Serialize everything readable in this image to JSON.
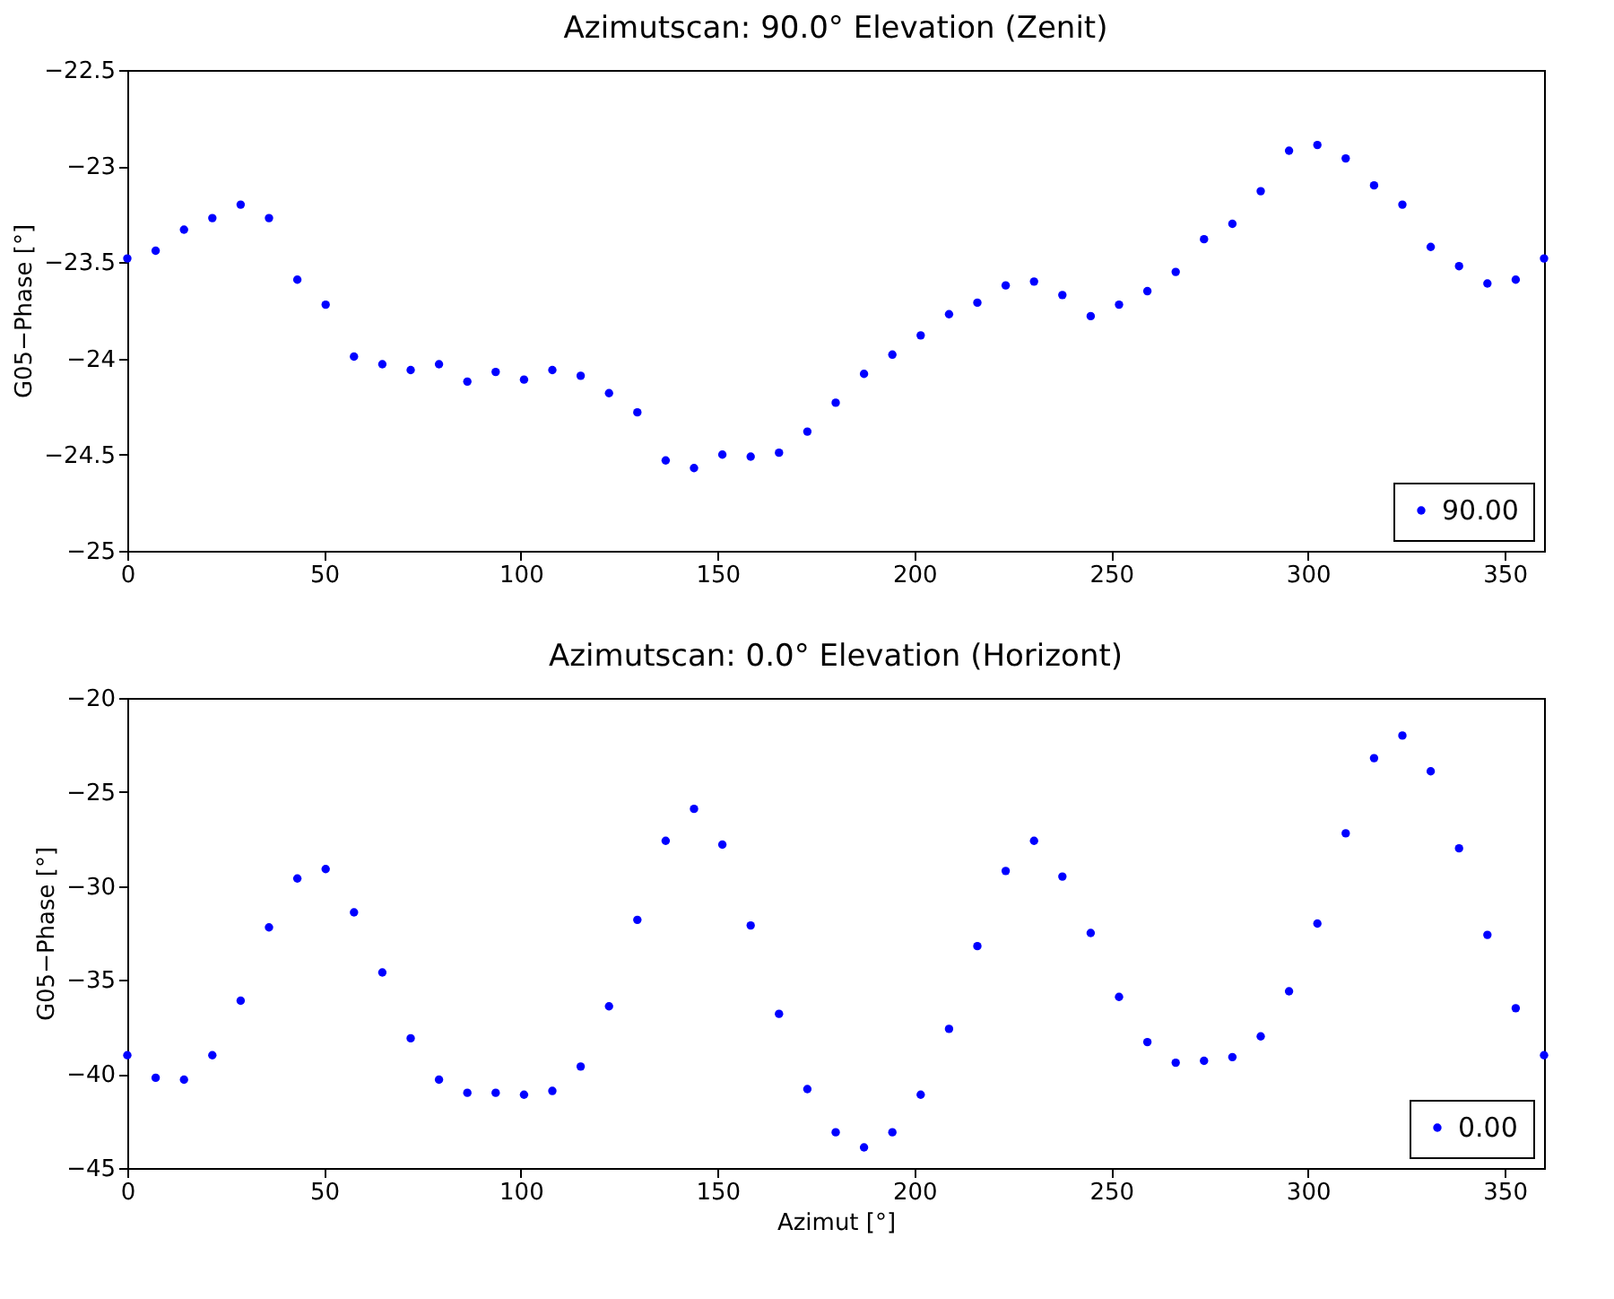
{
  "chart_data": [
    {
      "type": "scatter",
      "title": "Azimutscan: 90.0° Elevation (Zenit)",
      "ylabel": "G05−Phase [°]",
      "xlim": [
        0,
        360
      ],
      "xticks": [
        0,
        50,
        100,
        150,
        200,
        250,
        300,
        350
      ],
      "ylim": [
        -25,
        -22.5
      ],
      "yticks": [
        -25,
        -24.5,
        -24,
        -23.5,
        -23,
        -22.5
      ],
      "grid": false,
      "legend": "bottom right",
      "marker": "circle",
      "x": [
        0,
        7.2,
        14.4,
        21.6,
        28.8,
        36,
        43.2,
        50.4,
        57.6,
        64.8,
        72,
        79.2,
        86.4,
        93.6,
        100.8,
        108,
        115.2,
        122.4,
        129.6,
        136.8,
        144,
        151.2,
        158.4,
        165.6,
        172.8,
        180,
        187.2,
        194.4,
        201.6,
        208.8,
        216,
        223.2,
        230.4,
        237.6,
        244.8,
        252,
        259.2,
        266.4,
        273.6,
        280.8,
        288,
        295.2,
        302.4,
        309.6,
        316.8,
        324,
        331.2,
        338.4,
        345.6,
        352.8,
        360
      ],
      "series": [
        {
          "name": "90.00",
          "color": "#0000ff",
          "values": [
            -23.48,
            -23.44,
            -23.33,
            -23.27,
            -23.2,
            -23.27,
            -23.59,
            -23.72,
            -23.99,
            -24.03,
            -24.06,
            -24.03,
            -24.12,
            -24.07,
            -24.11,
            -24.06,
            -24.09,
            -24.18,
            -24.28,
            -24.53,
            -24.57,
            -24.5,
            -24.51,
            -24.49,
            -24.38,
            -24.23,
            -24.08,
            -23.98,
            -23.88,
            -23.77,
            -23.71,
            -23.62,
            -23.6,
            -23.67,
            -23.78,
            -23.72,
            -23.65,
            -23.55,
            -23.38,
            -23.3,
            -23.13,
            -22.92,
            -22.89,
            -22.96,
            -23.1,
            -23.2,
            -23.42,
            -23.52,
            -23.61,
            -23.59,
            -23.48
          ]
        }
      ]
    },
    {
      "type": "scatter",
      "title": "Azimutscan: 0.0° Elevation (Horizont)",
      "xlabel": "Azimut [°]",
      "ylabel": "G05−Phase [°]",
      "xlim": [
        0,
        360
      ],
      "xticks": [
        0,
        50,
        100,
        150,
        200,
        250,
        300,
        350
      ],
      "ylim": [
        -45,
        -20
      ],
      "yticks": [
        -45,
        -40,
        -35,
        -30,
        -25,
        -20
      ],
      "grid": false,
      "legend": "bottom right",
      "marker": "circle",
      "x": [
        0,
        7.2,
        14.4,
        21.6,
        28.8,
        36,
        43.2,
        50.4,
        57.6,
        64.8,
        72,
        79.2,
        86.4,
        93.6,
        100.8,
        108,
        115.2,
        122.4,
        129.6,
        136.8,
        144,
        151.2,
        158.4,
        165.6,
        172.8,
        180,
        187.2,
        194.4,
        201.6,
        208.8,
        216,
        223.2,
        230.4,
        237.6,
        244.8,
        252,
        259.2,
        266.4,
        273.6,
        280.8,
        288,
        295.2,
        302.4,
        309.6,
        316.8,
        324,
        331.2,
        338.4,
        345.6,
        352.8,
        360
      ],
      "series": [
        {
          "name": "0.00",
          "color": "#0000ff",
          "values": [
            -39.0,
            -40.2,
            -40.3,
            -39.0,
            -36.1,
            -32.2,
            -29.6,
            -29.1,
            -31.4,
            -34.6,
            -38.1,
            -40.3,
            -41.0,
            -41.0,
            -41.1,
            -40.9,
            -39.6,
            -36.4,
            -31.8,
            -27.6,
            -25.9,
            -27.8,
            -32.1,
            -36.8,
            -40.8,
            -43.1,
            -43.9,
            -43.1,
            -41.1,
            -37.6,
            -33.2,
            -29.2,
            -27.6,
            -29.5,
            -32.5,
            -35.9,
            -38.3,
            -39.4,
            -39.3,
            -39.1,
            -38.0,
            -35.6,
            -32.0,
            -27.2,
            -23.2,
            -22.0,
            -23.9,
            -28.0,
            -32.6,
            -36.5,
            -39.0
          ]
        }
      ]
    }
  ]
}
